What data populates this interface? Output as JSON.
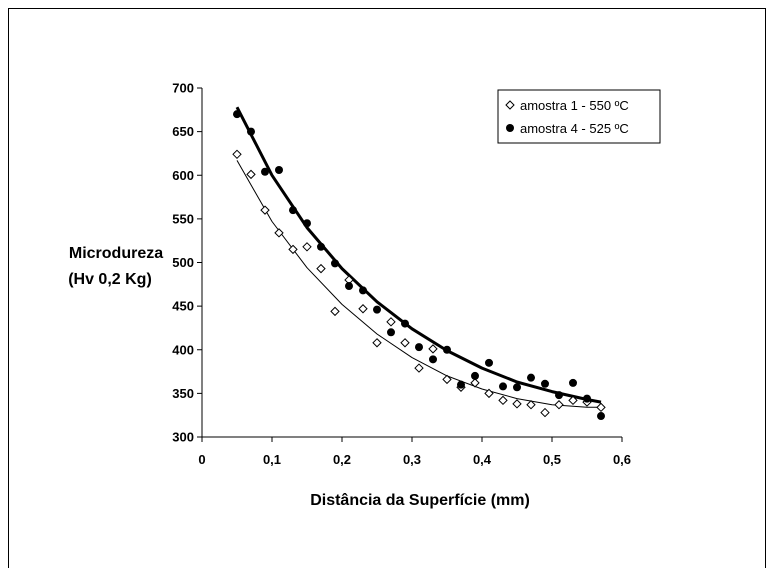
{
  "chart_data": {
    "type": "scatter",
    "title": "",
    "xlabel": "Distância da Superfície (mm)",
    "ylabel_line1": "Microdureza",
    "ylabel_line2": "(Hv 0,2 Kg)",
    "xlim": [
      0,
      0.6
    ],
    "ylim": [
      300,
      700
    ],
    "xticks": [
      "0",
      "0,1",
      "0,2",
      "0,3",
      "0,4",
      "0,5",
      "0,6"
    ],
    "yticks": [
      "300",
      "350",
      "400",
      "450",
      "500",
      "550",
      "600",
      "650",
      "700"
    ],
    "grid": false,
    "legend_position": "top-right",
    "series": [
      {
        "name": "amostra 1 - 550 ºC",
        "marker": "diamond-open",
        "trendline": "thin",
        "color": "#000000",
        "x": [
          0.05,
          0.07,
          0.09,
          0.11,
          0.13,
          0.15,
          0.17,
          0.19,
          0.21,
          0.23,
          0.25,
          0.27,
          0.29,
          0.31,
          0.33,
          0.35,
          0.37,
          0.39,
          0.41,
          0.43,
          0.45,
          0.47,
          0.49,
          0.51,
          0.53,
          0.55,
          0.57
        ],
        "y": [
          624,
          601,
          560,
          534,
          515,
          518,
          493,
          444,
          480,
          447,
          408,
          432,
          408,
          379,
          401,
          366,
          357,
          362,
          350,
          342,
          338,
          337,
          328,
          337,
          342,
          340,
          334
        ]
      },
      {
        "name": "amostra 4 - 525 ºC",
        "marker": "circle-filled",
        "trendline": "thick",
        "color": "#000000",
        "x": [
          0.05,
          0.07,
          0.09,
          0.11,
          0.13,
          0.15,
          0.17,
          0.19,
          0.21,
          0.23,
          0.25,
          0.27,
          0.29,
          0.31,
          0.33,
          0.35,
          0.37,
          0.39,
          0.41,
          0.43,
          0.45,
          0.47,
          0.49,
          0.51,
          0.53,
          0.55,
          0.57
        ],
        "y": [
          670,
          650,
          604,
          606,
          560,
          545,
          518,
          499,
          473,
          468,
          446,
          420,
          430,
          403,
          389,
          400,
          360,
          370,
          385,
          358,
          357,
          368,
          361,
          348,
          362,
          344,
          324
        ]
      }
    ],
    "trendlines": [
      {
        "series": "amostra 1 - 550 ºC",
        "x": [
          0.05,
          0.1,
          0.15,
          0.2,
          0.25,
          0.3,
          0.35,
          0.4,
          0.45,
          0.5,
          0.55,
          0.57
        ],
        "y": [
          617,
          547,
          494,
          452,
          418,
          391,
          370,
          355,
          344,
          337,
          334,
          334
        ]
      },
      {
        "series": "amostra 4 - 525 ºC",
        "x": [
          0.05,
          0.1,
          0.15,
          0.2,
          0.25,
          0.3,
          0.35,
          0.4,
          0.45,
          0.5,
          0.55,
          0.57
        ],
        "y": [
          678,
          600,
          540,
          493,
          455,
          424,
          399,
          379,
          363,
          352,
          343,
          340
        ]
      }
    ]
  }
}
